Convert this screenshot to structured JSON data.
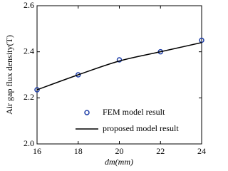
{
  "chart_data": {
    "type": "line",
    "x_label": "dm(mm)",
    "y_label": "Air gap flux density(T)",
    "xlim": [
      16,
      24
    ],
    "xticks": [
      16,
      18,
      20,
      22,
      24
    ],
    "ylim": [
      2.0,
      2.6
    ],
    "yticks": [
      {
        "value": 2.0,
        "label": "2.0"
      },
      2.2,
      2.4,
      2.6
    ],
    "x": [
      16,
      18,
      20,
      22,
      24
    ],
    "legend": "lower right",
    "series": [
      {
        "name": "FEM model result",
        "style": "marker",
        "color": "#1f3fa8",
        "values": [
          2.235,
          2.3,
          2.365,
          2.4,
          2.45
        ]
      },
      {
        "name": "proposed model result",
        "style": "line",
        "color": "#000000",
        "values": [
          2.235,
          2.3,
          2.36,
          2.4,
          2.44
        ]
      }
    ]
  }
}
